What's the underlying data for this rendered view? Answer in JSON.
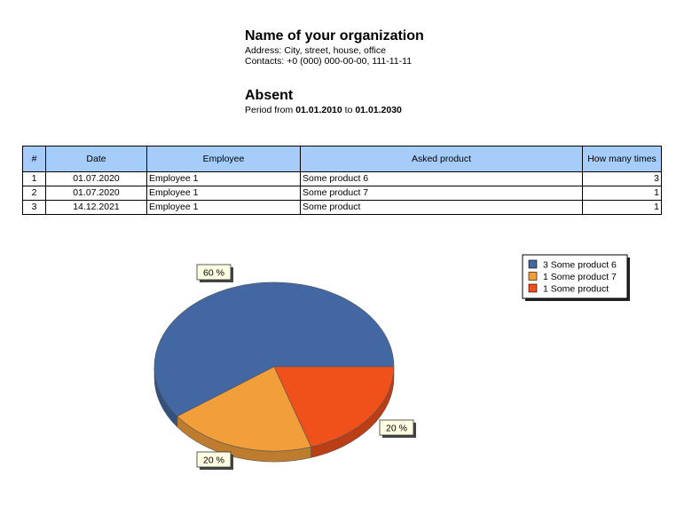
{
  "header": {
    "org_name": "Name of your organization",
    "address": "Address: City, street, house, office",
    "contacts": "Contacts: +0 (000) 000-00-00, 111-11-11",
    "title": "Absent",
    "period_prefix": "Period from ",
    "period_from": "01.01.2010",
    "period_mid": " to ",
    "period_to": "01.01.2030"
  },
  "table": {
    "columns": [
      "#",
      "Date",
      "Employee",
      "Asked product",
      "How many times"
    ],
    "rows": [
      {
        "num": "1",
        "date": "01.07.2020",
        "employee": "Employee 1",
        "product": "Some product 6",
        "count": "3"
      },
      {
        "num": "2",
        "date": "01.07.2020",
        "employee": "Employee 1",
        "product": "Some product 7",
        "count": "1"
      },
      {
        "num": "3",
        "date": "14.12.2021",
        "employee": "Employee 1",
        "product": "Some product",
        "count": "1"
      }
    ]
  },
  "chart_data": {
    "type": "pie",
    "categories": [
      "Some product 6",
      "Some product 7",
      "Some product"
    ],
    "values": [
      3,
      1,
      1
    ],
    "percent_labels": [
      "60 %",
      "20 %",
      "20 %"
    ],
    "legend_labels": [
      "3 Some product 6",
      "1 Some product 7",
      "1 Some product"
    ],
    "colors": [
      "#4367a3",
      "#f29f3b",
      "#f0501a"
    ],
    "legend_position": "top-right",
    "style": "3d"
  }
}
